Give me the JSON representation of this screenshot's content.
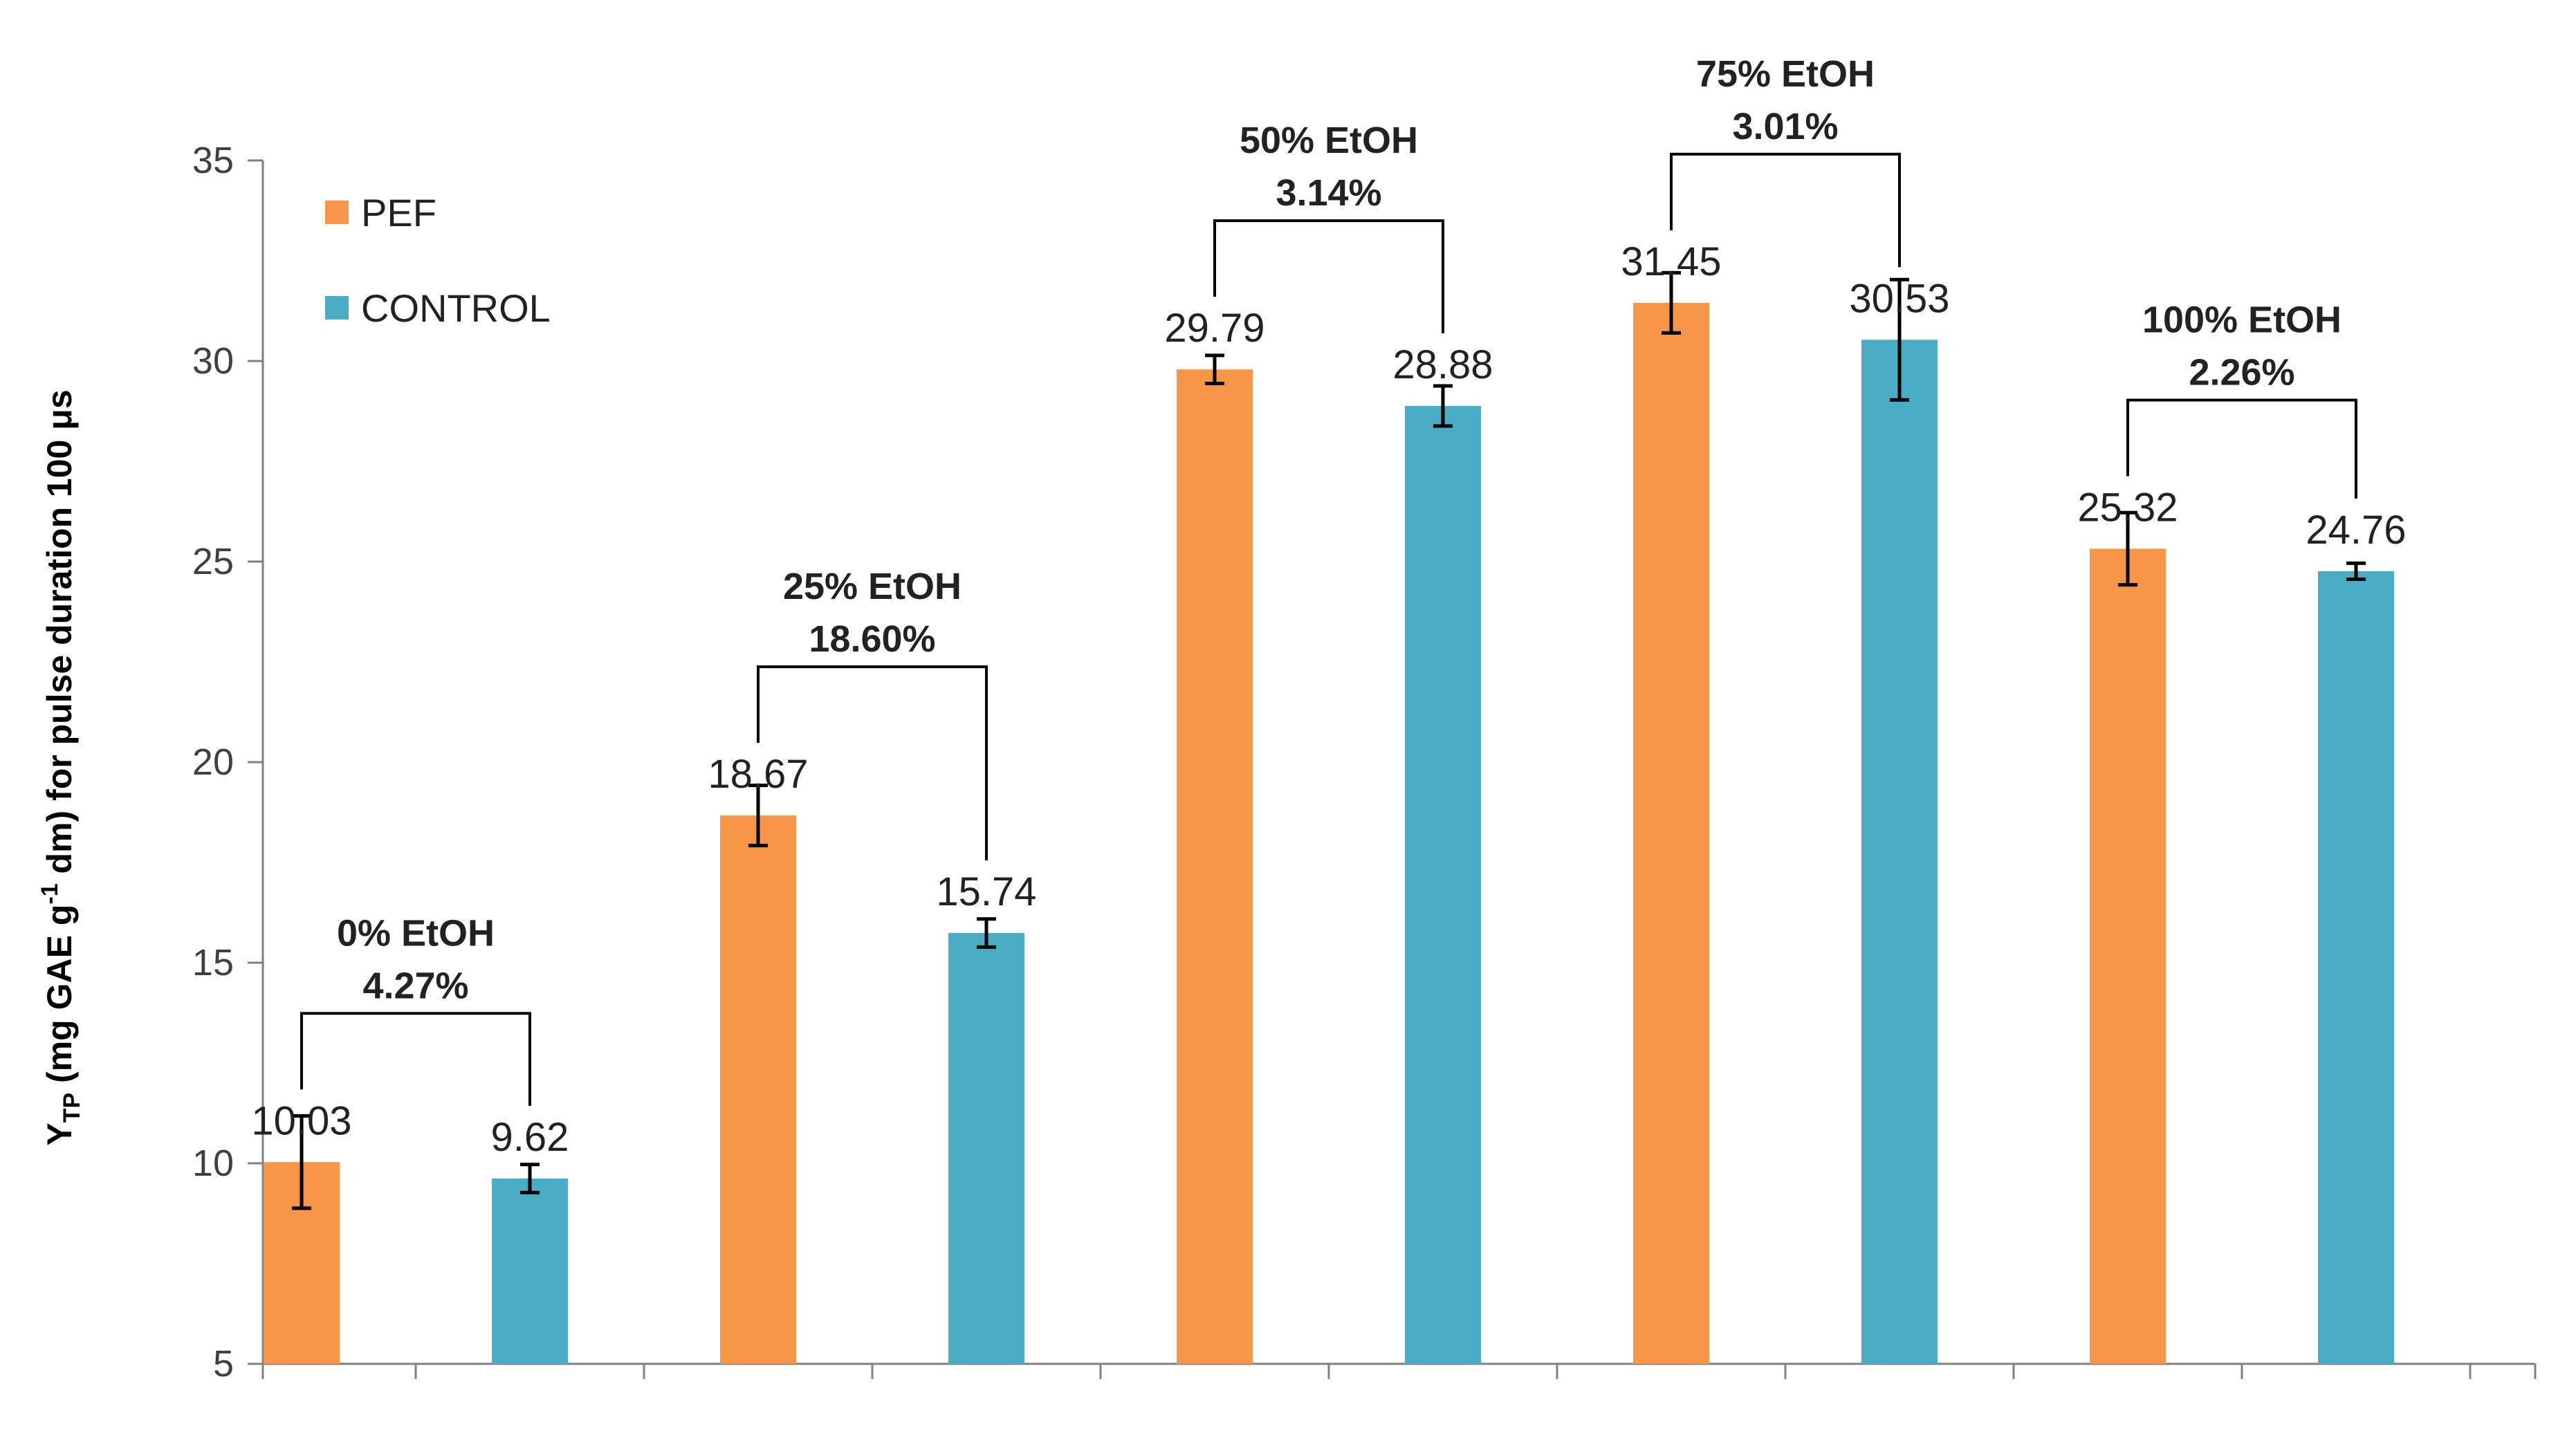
{
  "chart_data": {
    "type": "bar",
    "title": "",
    "xlabel": "",
    "ylabel": {
      "prefix": "Y",
      "prefix_sub": "TP",
      "main": " (mg  GAE g",
      "sup": "-1",
      "rest": " dm) for pulse duration 100 μs"
    },
    "ylim": [
      5,
      35
    ],
    "yticks": [
      5,
      10,
      15,
      20,
      25,
      30,
      35
    ],
    "colors": {
      "PEF": "#F79646",
      "CONTROL": "#4BACC6"
    },
    "legend": [
      "PEF",
      "CONTROL"
    ],
    "groups": [
      {
        "name": "0% EtOH",
        "pct": "4.27%",
        "pef": 10.03,
        "pef_label": "10.03",
        "pef_err": 1.15,
        "control": 9.62,
        "control_label": "9.62",
        "control_err": 0.35
      },
      {
        "name": "25% EtOH",
        "pct": "18.60%",
        "pef": 18.67,
        "pef_label": "18.67",
        "pef_err": 0.75,
        "control": 15.74,
        "control_label": "15.74",
        "control_err": 0.35
      },
      {
        "name": "50% EtOH",
        "pct": "3.14%",
        "pef": 29.79,
        "pef_label": "29.79",
        "pef_err": 0.35,
        "control": 28.88,
        "control_label": "28.88",
        "control_err": 0.5
      },
      {
        "name": "75% EtOH",
        "pct": "3.01%",
        "pef": 31.45,
        "pef_label": "31.45",
        "pef_err": 0.75,
        "control": 30.53,
        "control_label": "30.53",
        "control_err": 1.5
      },
      {
        "name": "100% EtOH",
        "pct": "2.26%",
        "pef": 25.32,
        "pef_label": "25.32",
        "pef_err": 0.9,
        "control": 24.76,
        "control_label": "24.76",
        "control_err": 0.2
      }
    ]
  }
}
